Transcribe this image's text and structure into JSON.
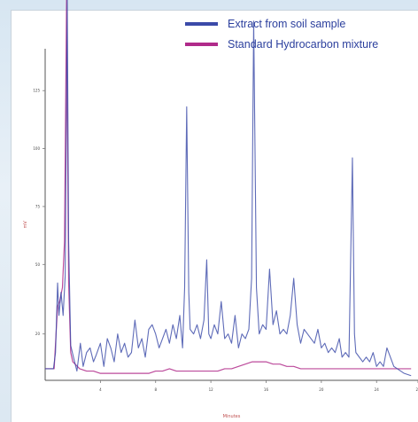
{
  "chart_data": {
    "type": "line",
    "title": "",
    "xlabel": "Minutes",
    "ylabel": "mV",
    "xlim": [
      0,
      54
    ],
    "ylim": [
      0,
      140
    ],
    "xticks": [
      "4",
      "8",
      "12",
      "16",
      "20",
      "24",
      "28"
    ],
    "yticks": [
      "20",
      "50",
      "75",
      "100",
      "125"
    ],
    "legend": {
      "position": "top-right",
      "entries": [
        "Extract from soil sample",
        "Standard Hydrocarbon mixture"
      ]
    },
    "grid": false,
    "series": [
      {
        "name": "Extract from soil sample",
        "color": "#3b4aa8",
        "points": [
          [
            0,
            5
          ],
          [
            1.2,
            5
          ],
          [
            1.5,
            12
          ],
          [
            1.8,
            42
          ],
          [
            2,
            28
          ],
          [
            2.3,
            38
          ],
          [
            2.6,
            28
          ],
          [
            2.9,
            45
          ],
          [
            3.2,
            180
          ],
          [
            3.4,
            60
          ],
          [
            3.7,
            15
          ],
          [
            4.1,
            10
          ],
          [
            4.6,
            4
          ],
          [
            5.1,
            16
          ],
          [
            5.5,
            6
          ],
          [
            6,
            12
          ],
          [
            6.5,
            14
          ],
          [
            7,
            8
          ],
          [
            7.4,
            11
          ],
          [
            8,
            16
          ],
          [
            8.5,
            6
          ],
          [
            9,
            18
          ],
          [
            9.5,
            14
          ],
          [
            10,
            8
          ],
          [
            10.5,
            20
          ],
          [
            11,
            12
          ],
          [
            11.5,
            16
          ],
          [
            12,
            10
          ],
          [
            12.5,
            12
          ],
          [
            13,
            26
          ],
          [
            13.5,
            14
          ],
          [
            14,
            18
          ],
          [
            14.5,
            10
          ],
          [
            15,
            22
          ],
          [
            15.5,
            24
          ],
          [
            16,
            20
          ],
          [
            16.5,
            14
          ],
          [
            17,
            18
          ],
          [
            17.5,
            22
          ],
          [
            18,
            16
          ],
          [
            18.5,
            24
          ],
          [
            19,
            18
          ],
          [
            19.5,
            28
          ],
          [
            19.9,
            14
          ],
          [
            20.2,
            40
          ],
          [
            20.5,
            118
          ],
          [
            20.8,
            38
          ],
          [
            21,
            22
          ],
          [
            21.5,
            20
          ],
          [
            22,
            24
          ],
          [
            22.5,
            18
          ],
          [
            23,
            26
          ],
          [
            23.4,
            52
          ],
          [
            23.7,
            20
          ],
          [
            24,
            18
          ],
          [
            24.5,
            24
          ],
          [
            25,
            20
          ],
          [
            25.5,
            34
          ],
          [
            26,
            18
          ],
          [
            26.5,
            20
          ],
          [
            27,
            16
          ],
          [
            27.5,
            28
          ],
          [
            28,
            14
          ],
          [
            28.5,
            20
          ],
          [
            29,
            18
          ],
          [
            29.5,
            22
          ],
          [
            29.9,
            44
          ],
          [
            30.2,
            155
          ],
          [
            30.6,
            40
          ],
          [
            31,
            20
          ],
          [
            31.5,
            24
          ],
          [
            32,
            22
          ],
          [
            32.5,
            48
          ],
          [
            33,
            24
          ],
          [
            33.5,
            30
          ],
          [
            34,
            20
          ],
          [
            34.5,
            22
          ],
          [
            35,
            20
          ],
          [
            35.5,
            28
          ],
          [
            36,
            44
          ],
          [
            36.5,
            24
          ],
          [
            37,
            16
          ],
          [
            37.5,
            22
          ],
          [
            38,
            20
          ],
          [
            38.5,
            18
          ],
          [
            39,
            16
          ],
          [
            39.5,
            22
          ],
          [
            40,
            14
          ],
          [
            40.5,
            16
          ],
          [
            41,
            12
          ],
          [
            41.5,
            14
          ],
          [
            42,
            12
          ],
          [
            42.6,
            18
          ],
          [
            43,
            10
          ],
          [
            43.5,
            12
          ],
          [
            44,
            10
          ],
          [
            44.5,
            96
          ],
          [
            44.8,
            20
          ],
          [
            45,
            12
          ],
          [
            45.5,
            10
          ],
          [
            46,
            8
          ],
          [
            46.5,
            10
          ],
          [
            47,
            8
          ],
          [
            47.5,
            12
          ],
          [
            48,
            6
          ],
          [
            48.5,
            8
          ],
          [
            49,
            6
          ],
          [
            49.5,
            14
          ],
          [
            50,
            10
          ],
          [
            50.5,
            6
          ],
          [
            51,
            5
          ],
          [
            51.5,
            4
          ],
          [
            52,
            3
          ],
          [
            53,
            2
          ]
        ]
      },
      {
        "name": "Standard Hydrocarbon mixture",
        "color": "#b02a8a",
        "points": [
          [
            0,
            5
          ],
          [
            1.3,
            5
          ],
          [
            1.8,
            32
          ],
          [
            2.1,
            34
          ],
          [
            2.5,
            40
          ],
          [
            2.8,
            60
          ],
          [
            3.1,
            210
          ],
          [
            3.4,
            42
          ],
          [
            3.7,
            12
          ],
          [
            4,
            8
          ],
          [
            5,
            5
          ],
          [
            6,
            4
          ],
          [
            7,
            4
          ],
          [
            8,
            3
          ],
          [
            9,
            3
          ],
          [
            10,
            3
          ],
          [
            11,
            3
          ],
          [
            12,
            3
          ],
          [
            13,
            3
          ],
          [
            14,
            3
          ],
          [
            15,
            3
          ],
          [
            16,
            4
          ],
          [
            17,
            4
          ],
          [
            18,
            5
          ],
          [
            19,
            4
          ],
          [
            20,
            4
          ],
          [
            21,
            4
          ],
          [
            22,
            4
          ],
          [
            23,
            4
          ],
          [
            24,
            4
          ],
          [
            25,
            4
          ],
          [
            26,
            5
          ],
          [
            27,
            5
          ],
          [
            28,
            6
          ],
          [
            29,
            7
          ],
          [
            30,
            8
          ],
          [
            31,
            8
          ],
          [
            32,
            8
          ],
          [
            33,
            7
          ],
          [
            34,
            7
          ],
          [
            35,
            6
          ],
          [
            36,
            6
          ],
          [
            37,
            5
          ],
          [
            38,
            5
          ],
          [
            39,
            5
          ],
          [
            40,
            5
          ],
          [
            41,
            5
          ],
          [
            42,
            5
          ],
          [
            43,
            5
          ],
          [
            44,
            5
          ],
          [
            45,
            5
          ],
          [
            46,
            5
          ],
          [
            47,
            5
          ],
          [
            48,
            5
          ],
          [
            49,
            5
          ],
          [
            50,
            5
          ],
          [
            51,
            5
          ],
          [
            52,
            5
          ],
          [
            53,
            5
          ]
        ]
      }
    ]
  }
}
